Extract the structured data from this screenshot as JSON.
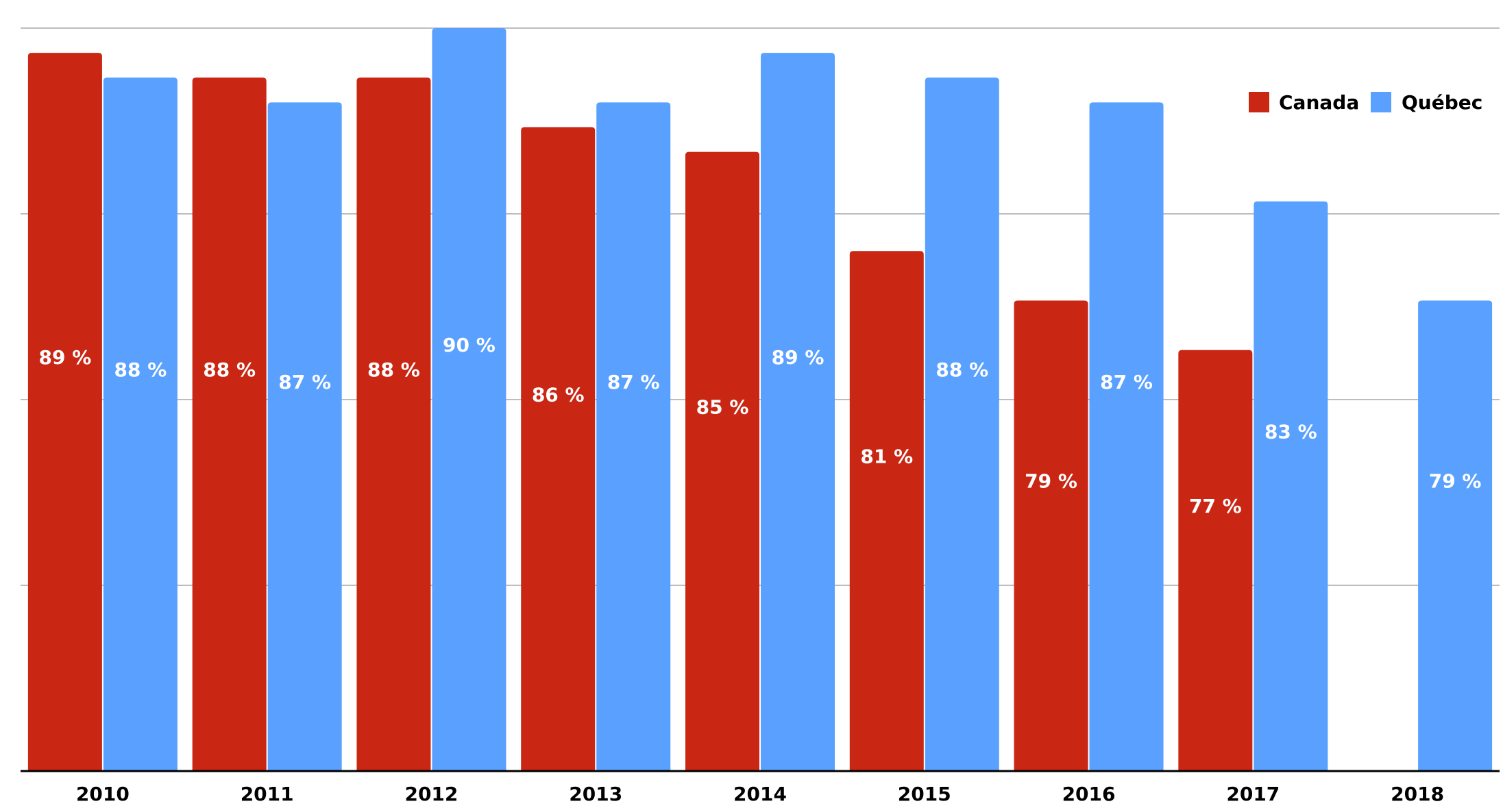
{
  "chart_data": {
    "type": "bar",
    "title": "",
    "xlabel": "",
    "ylabel": "",
    "categories": [
      "2010",
      "2011",
      "2012",
      "2013",
      "2014",
      "2015",
      "2016",
      "2017",
      "2018"
    ],
    "series": [
      {
        "name": "Canada",
        "color": "#c92614",
        "values": [
          89,
          88,
          88,
          86,
          85,
          81,
          79,
          77,
          null
        ],
        "labels": [
          "89 %",
          "88 %",
          "88 %",
          "86 %",
          "85 %",
          "81 %",
          "79 %",
          "77 %",
          ""
        ]
      },
      {
        "name": "Québec",
        "color": "#5aa0fe",
        "values": [
          88,
          87,
          90,
          87,
          89,
          88,
          87,
          83,
          79
        ],
        "labels": [
          "88 %",
          "87 %",
          "90 %",
          "87 %",
          "89 %",
          "88 %",
          "87 %",
          "83 %",
          "79 %"
        ]
      }
    ],
    "ylim": [
      60,
      90
    ],
    "gridlines": [
      60,
      67.5,
      75,
      82.5,
      90
    ],
    "grid": true,
    "legend_position": "top-right"
  }
}
